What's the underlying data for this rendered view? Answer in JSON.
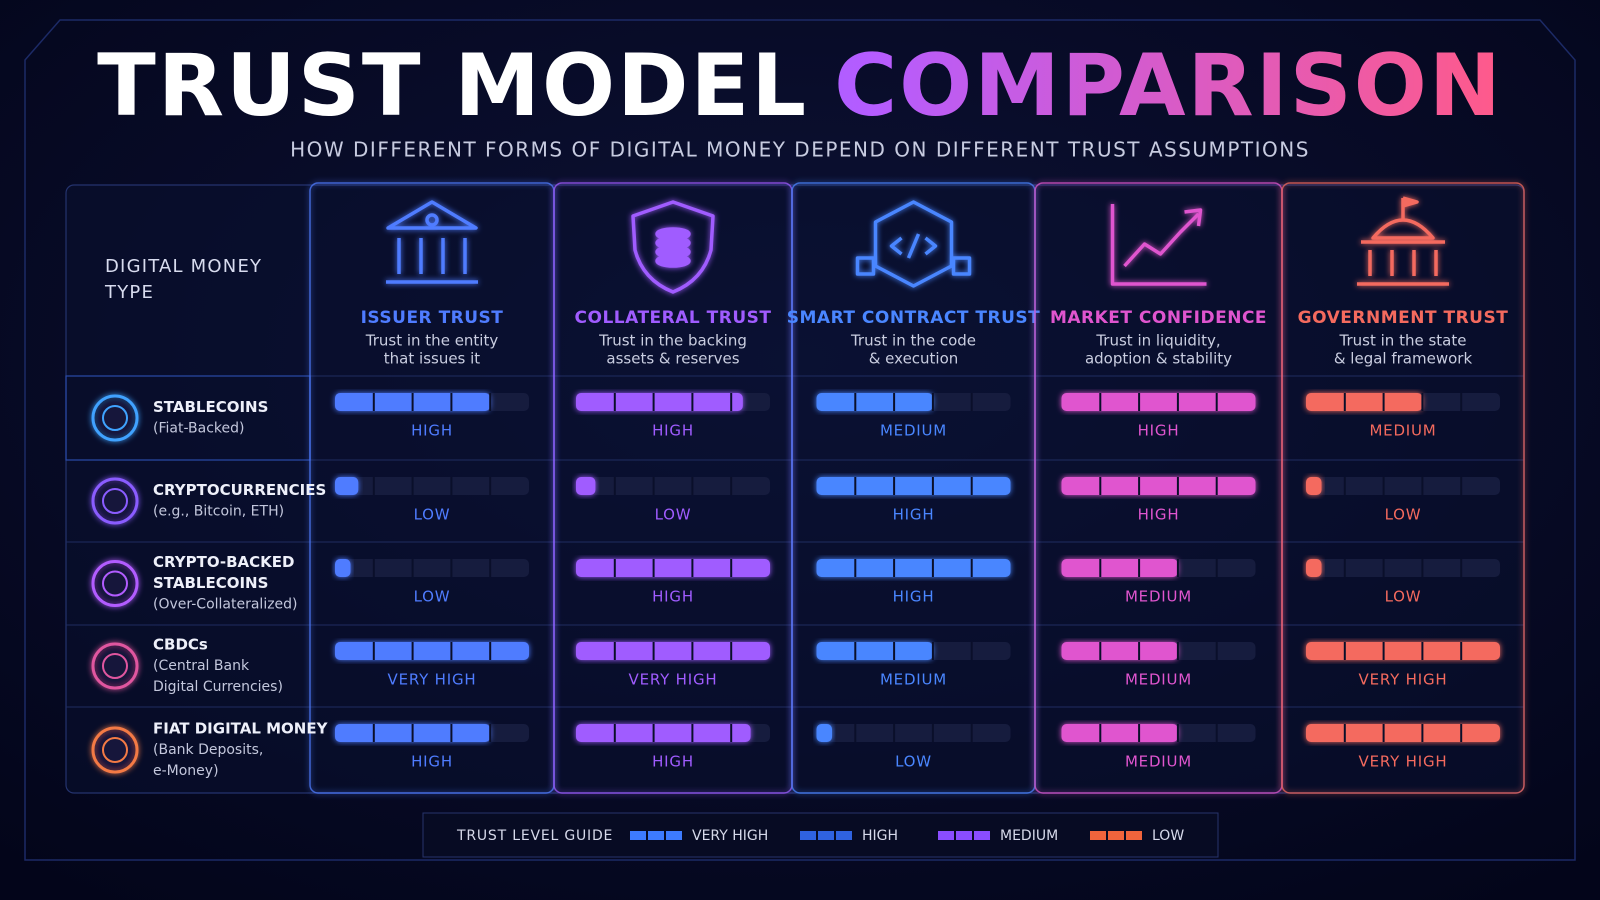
{
  "header": {
    "title_main": "TRUST MODEL",
    "title_accent": "COMPARISON",
    "subtitle": "HOW DIFFERENT FORMS OF DIGITAL MONEY DEPEND ON DIFFERENT TRUST ASSUMPTIONS"
  },
  "table": {
    "corner": [
      "DIGITAL MONEY",
      "TYPE"
    ],
    "xlim": [
      0,
      5
    ],
    "columns": [
      {
        "name": "ISSUER TRUST",
        "description": [
          "Trust in the entity",
          "that issues it"
        ],
        "color": "#4f7cff"
      },
      {
        "name": "COLLATERAL TRUST",
        "description": [
          "Trust in the backing",
          "assets & reserves"
        ],
        "color": "#a05cff"
      },
      {
        "name": "SMART CONTRACT TRUST",
        "description": [
          "Trust in the code",
          "& execution"
        ],
        "color": "#4a86ff"
      },
      {
        "name": "MARKET CONFIDENCE",
        "description": [
          "Trust in liquidity,",
          "adoption & stability"
        ],
        "color": "#e055cf"
      },
      {
        "name": "GOVERNMENT TRUST",
        "description": [
          "Trust in the state",
          "& legal framework"
        ],
        "color": "#f46a5e"
      }
    ],
    "rows": [
      {
        "name": [
          "STABLECOINS"
        ],
        "detail": [
          "(Fiat-Backed)"
        ],
        "color": "#3fa2ff",
        "cells": [
          {
            "level": "HIGH",
            "fill": 4
          },
          {
            "level": "HIGH",
            "fill": 4.3
          },
          {
            "level": "MEDIUM",
            "fill": 3
          },
          {
            "level": "HIGH",
            "fill": 5
          },
          {
            "level": "MEDIUM",
            "fill": 3
          }
        ]
      },
      {
        "name": [
          "CRYPTOCURRENCIES"
        ],
        "detail": [
          "(e.g., Bitcoin, ETH)"
        ],
        "color": "#8a5cff",
        "cells": [
          {
            "level": "LOW",
            "fill": 0.6
          },
          {
            "level": "LOW",
            "fill": 0.5
          },
          {
            "level": "HIGH",
            "fill": 5
          },
          {
            "level": "HIGH",
            "fill": 5
          },
          {
            "level": "LOW",
            "fill": 0.4
          }
        ]
      },
      {
        "name": [
          "CRYPTO-BACKED",
          "STABLECOINS"
        ],
        "detail": [
          "(Over-Collateralized)"
        ],
        "color": "#b25cff",
        "cells": [
          {
            "level": "LOW",
            "fill": 0.4
          },
          {
            "level": "HIGH",
            "fill": 5
          },
          {
            "level": "HIGH",
            "fill": 5
          },
          {
            "level": "MEDIUM",
            "fill": 3
          },
          {
            "level": "LOW",
            "fill": 0.4
          }
        ]
      },
      {
        "name": [
          "CBDCs"
        ],
        "detail": [
          "(Central Bank",
          "Digital Currencies)"
        ],
        "color": "#e0569f",
        "cells": [
          {
            "level": "VERY HIGH",
            "fill": 5
          },
          {
            "level": "VERY HIGH",
            "fill": 5
          },
          {
            "level": "MEDIUM",
            "fill": 3
          },
          {
            "level": "MEDIUM",
            "fill": 3
          },
          {
            "level": "VERY HIGH",
            "fill": 5
          }
        ]
      },
      {
        "name": [
          "FIAT DIGITAL MONEY"
        ],
        "detail": [
          "(Bank Deposits,",
          "e-Money)"
        ],
        "color": "#f47a45",
        "cells": [
          {
            "level": "HIGH",
            "fill": 4
          },
          {
            "level": "HIGH",
            "fill": 4.5
          },
          {
            "level": "LOW",
            "fill": 0.4
          },
          {
            "level": "MEDIUM",
            "fill": 3
          },
          {
            "level": "VERY HIGH",
            "fill": 5
          }
        ]
      }
    ]
  },
  "legend": {
    "title": "TRUST LEVEL GUIDE",
    "items": [
      {
        "label": "VERY HIGH",
        "color": "#3d7bff"
      },
      {
        "label": "HIGH",
        "color": "#2f62e0"
      },
      {
        "label": "MEDIUM",
        "color": "#8a4dff"
      },
      {
        "label": "LOW",
        "color": "#f0643c"
      }
    ]
  }
}
